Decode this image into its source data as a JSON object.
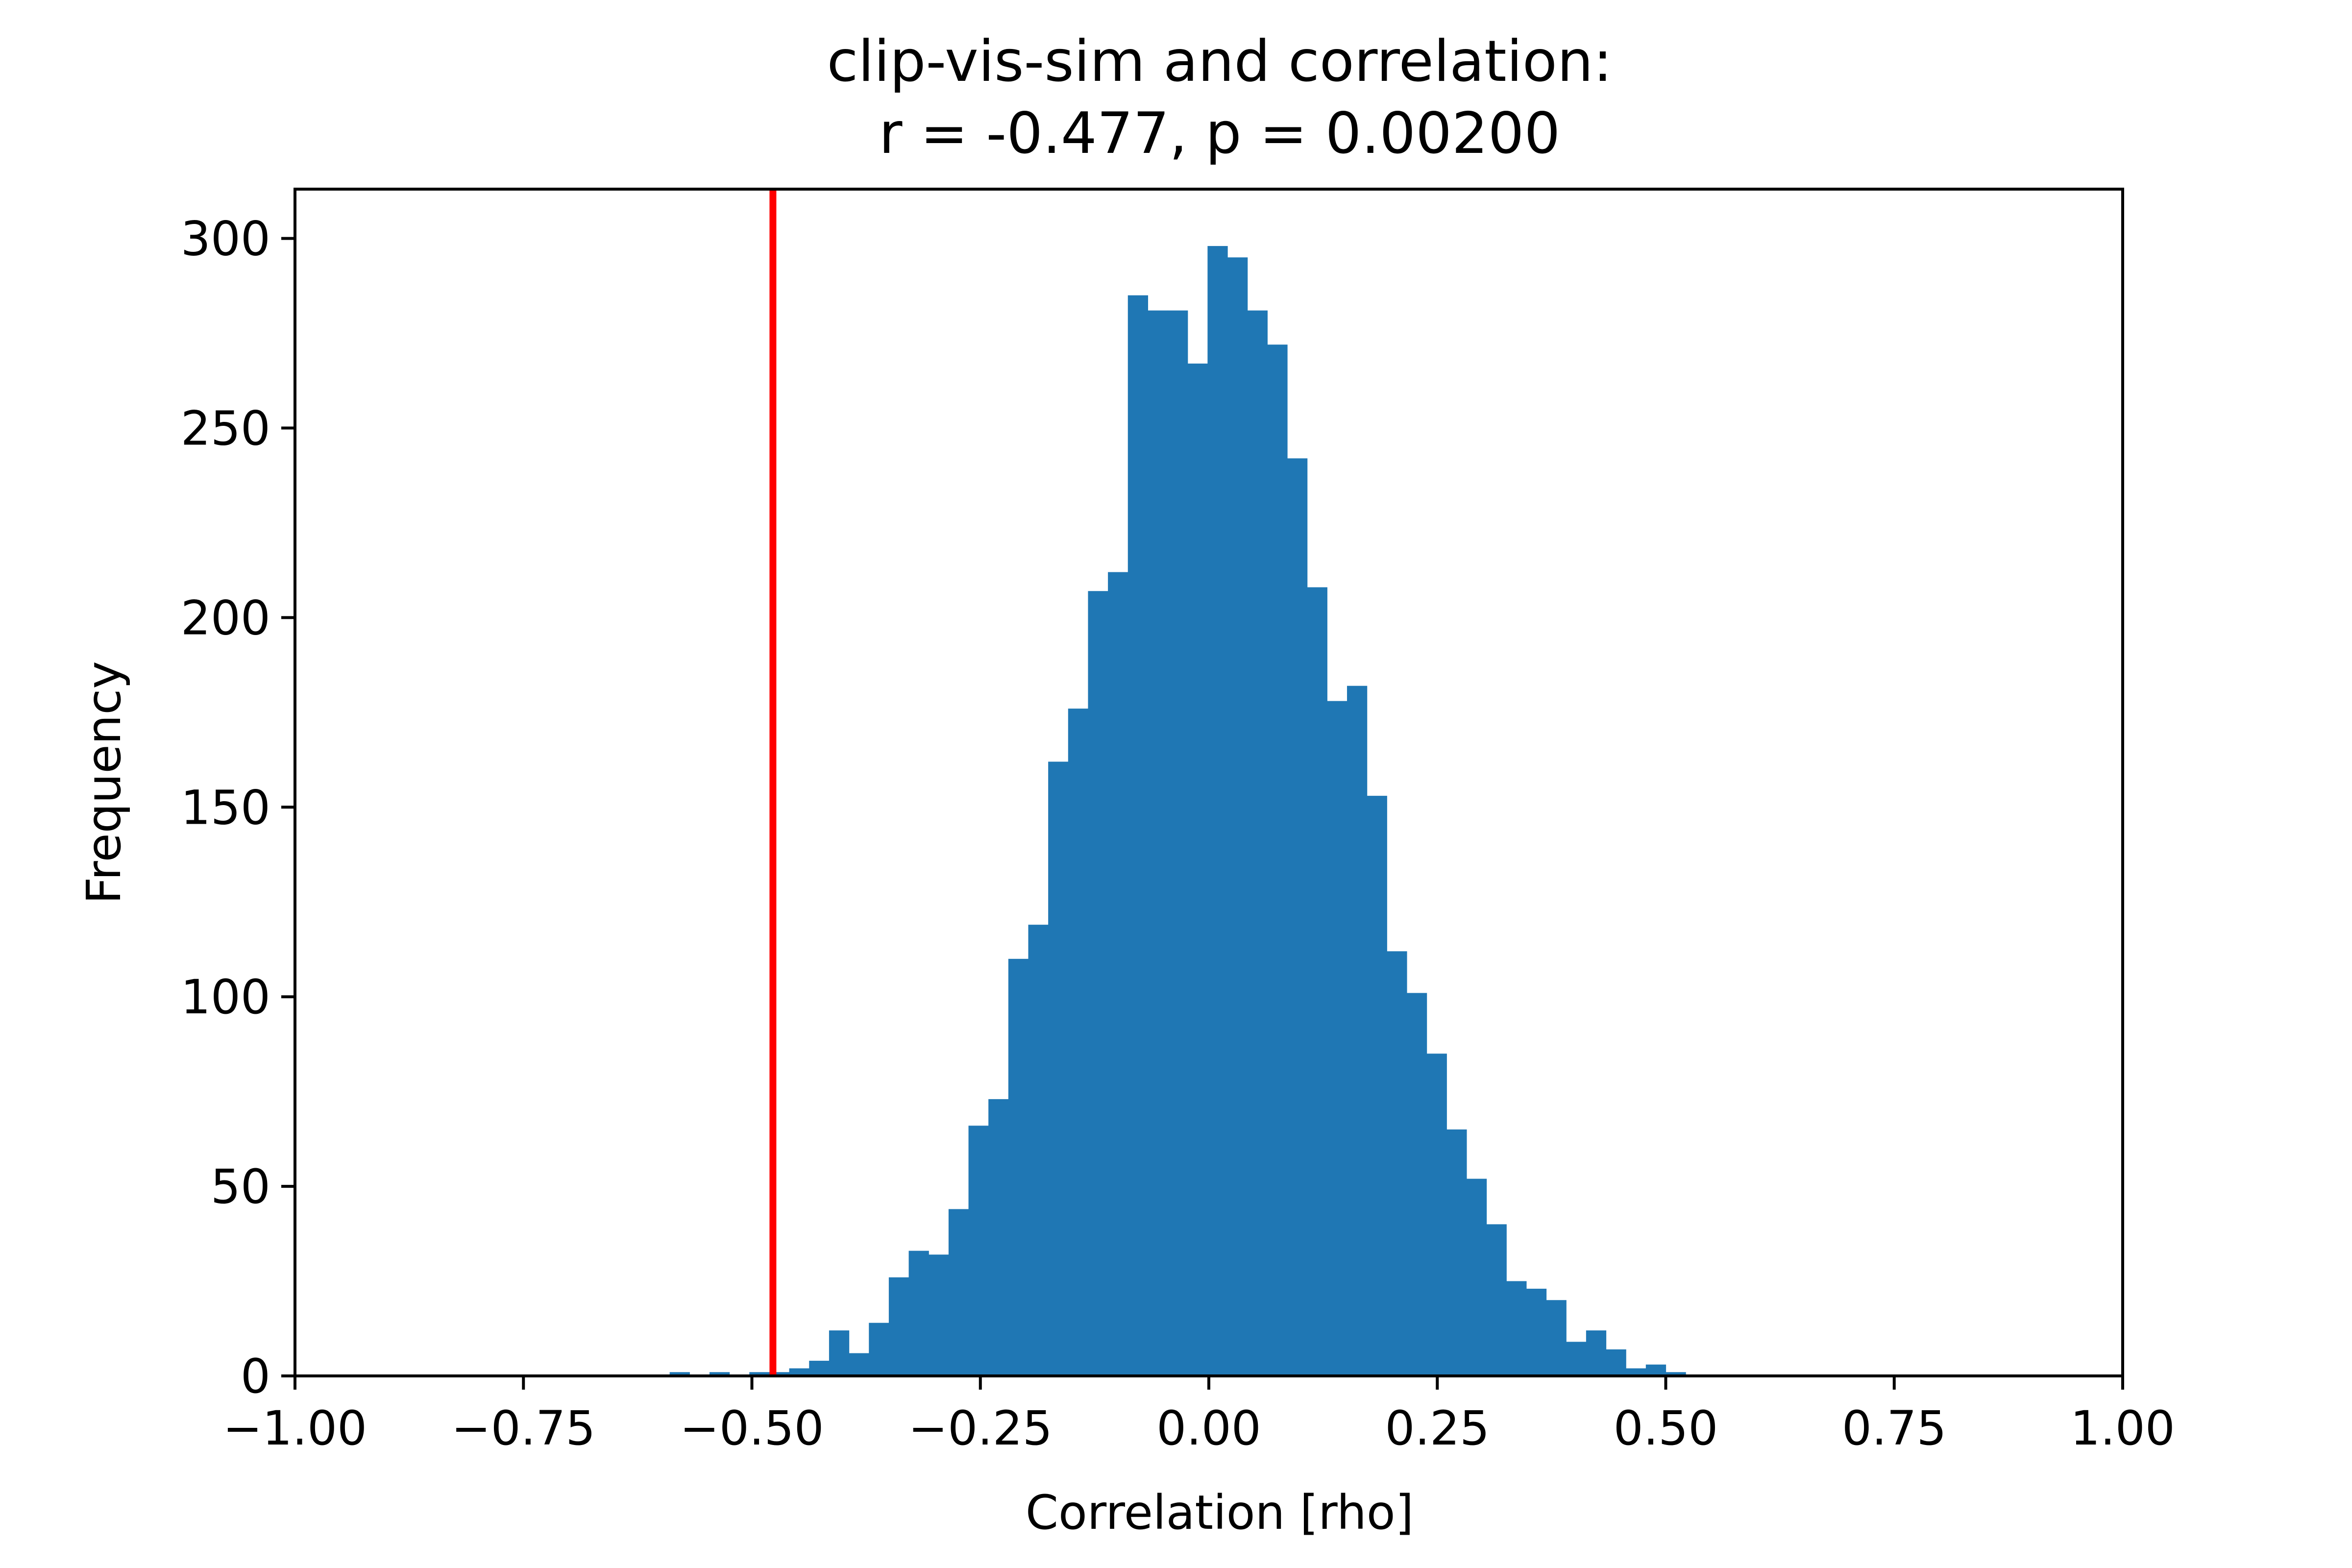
{
  "chart_data": {
    "type": "histogram",
    "title": [
      "clip-vis-sim and correlation:",
      "r = -0.477, p = 0.00200"
    ],
    "xlabel": "Correlation [rho]",
    "ylabel": "Frequency",
    "xlim": [
      -1.0,
      1.0
    ],
    "ylim": [
      0,
      313
    ],
    "grid": false,
    "x_ticks": [
      -1.0,
      -0.75,
      -0.5,
      -0.25,
      0.0,
      0.25,
      0.5,
      0.75,
      1.0
    ],
    "x_tick_labels": [
      "−1.00",
      "−0.75",
      "−0.50",
      "−0.25",
      "0.00",
      "0.25",
      "0.50",
      "0.75",
      "1.00"
    ],
    "y_ticks": [
      0,
      50,
      100,
      150,
      200,
      250,
      300
    ],
    "y_tick_labels": [
      "0",
      "50",
      "100",
      "150",
      "200",
      "250",
      "300"
    ],
    "bin_edges_start": -0.59,
    "bin_width": 0.0218,
    "counts": [
      1,
      0,
      1,
      0,
      1,
      1,
      2,
      4,
      12,
      6,
      14,
      26,
      33,
      32,
      44,
      66,
      73,
      110,
      119,
      162,
      176,
      207,
      212,
      285,
      281,
      281,
      267,
      298,
      295,
      281,
      272,
      242,
      208,
      178,
      182,
      153,
      112,
      101,
      85,
      65,
      52,
      40,
      25,
      23,
      20,
      9,
      12,
      7,
      2,
      3,
      1
    ],
    "bar_color": "#1f77b4",
    "reference_line": {
      "x": -0.477,
      "color": "#ff0000"
    }
  }
}
